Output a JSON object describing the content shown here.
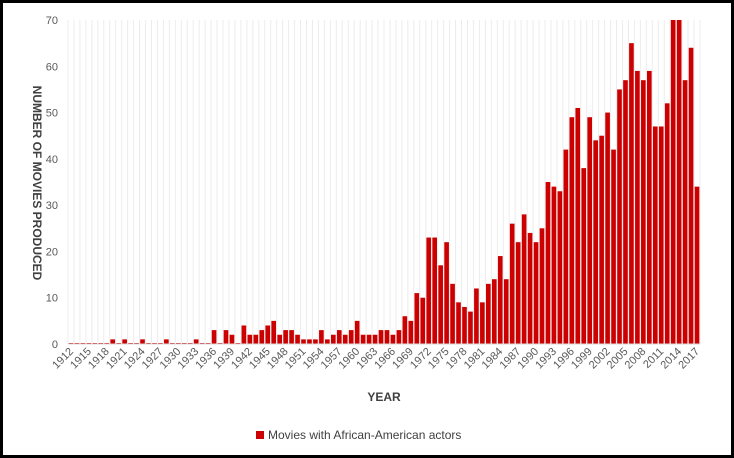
{
  "chart_data": {
    "type": "bar",
    "title": "",
    "xlabel": "YEAR",
    "ylabel": "NUMBER OF MOVIES PRODUCED",
    "ylim": [
      0,
      70
    ],
    "yticks": [
      0,
      10,
      20,
      30,
      40,
      50,
      60,
      70
    ],
    "grid": "vertical lines at each category",
    "legend_position": "bottom",
    "x_tick_labels": [
      "1912",
      "1915",
      "1918",
      "1921",
      "1924",
      "1927",
      "1930",
      "1933",
      "1936",
      "1939",
      "1942",
      "1945",
      "1948",
      "1951",
      "1954",
      "1957",
      "1960",
      "1963",
      "1966",
      "1969",
      "1972",
      "1975",
      "1978",
      "1981",
      "1984",
      "1987",
      "1990",
      "1993",
      "1996",
      "1999",
      "2002",
      "2005",
      "2008",
      "2011",
      "2014",
      "2017"
    ],
    "categories": [
      "1912",
      "1913",
      "1914",
      "1915",
      "1916",
      "1917",
      "1918",
      "1919",
      "1920",
      "1921",
      "1922",
      "1923",
      "1924",
      "1925",
      "1926",
      "1927",
      "1928",
      "1929",
      "1930",
      "1931",
      "1932",
      "1933",
      "1934",
      "1935",
      "1936",
      "1937",
      "1938",
      "1939",
      "1940",
      "1941",
      "1942",
      "1943",
      "1944",
      "1945",
      "1946",
      "1947",
      "1948",
      "1949",
      "1950",
      "1951",
      "1952",
      "1953",
      "1954",
      "1955",
      "1956",
      "1957",
      "1958",
      "1959",
      "1960",
      "1961",
      "1962",
      "1963",
      "1964",
      "1965",
      "1966",
      "1967",
      "1968",
      "1969",
      "1970",
      "1971",
      "1972",
      "1973",
      "1974",
      "1975",
      "1976",
      "1977",
      "1978",
      "1979",
      "1980",
      "1981",
      "1982",
      "1983",
      "1984",
      "1985",
      "1986",
      "1987",
      "1988",
      "1989",
      "1990",
      "1991",
      "1992",
      "1993",
      "1994",
      "1995",
      "1996",
      "1997",
      "1998",
      "1999",
      "2000",
      "2001",
      "2002",
      "2003",
      "2004",
      "2005",
      "2006",
      "2007",
      "2008",
      "2009",
      "2010",
      "2011",
      "2012",
      "2013",
      "2014",
      "2015",
      "2016",
      "2017"
    ],
    "series": [
      {
        "name": "Movies with African-American actors",
        "color": "#cc0000",
        "values": [
          0,
          0,
          0,
          0,
          0,
          0,
          0,
          1,
          0,
          1,
          0,
          0,
          1,
          0,
          0,
          0,
          1,
          0,
          0,
          0,
          0,
          1,
          0,
          0,
          3,
          0,
          3,
          2,
          0,
          4,
          2,
          2,
          3,
          4,
          5,
          2,
          3,
          3,
          2,
          1,
          1,
          1,
          3,
          1,
          2,
          3,
          2,
          3,
          5,
          2,
          2,
          2,
          3,
          3,
          2,
          3,
          6,
          5,
          11,
          10,
          23,
          23,
          17,
          22,
          13,
          9,
          8,
          7,
          12,
          9,
          13,
          14,
          19,
          14,
          26,
          22,
          28,
          24,
          22,
          25,
          35,
          34,
          33,
          42,
          49,
          51,
          38,
          49,
          44,
          45,
          50,
          42,
          55,
          57,
          65,
          59,
          57,
          59,
          47,
          47,
          52,
          70,
          70,
          57,
          64,
          34
        ]
      }
    ]
  }
}
